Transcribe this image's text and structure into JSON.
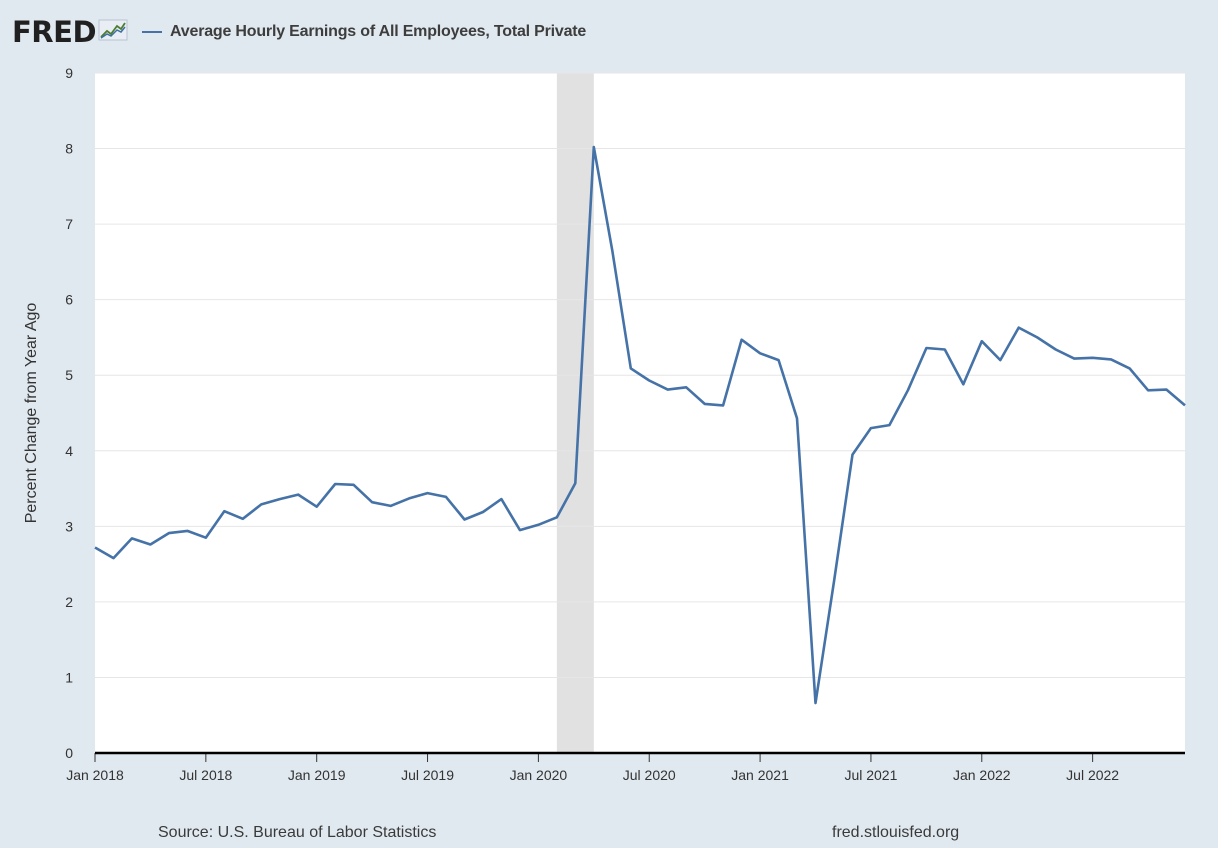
{
  "header": {
    "logo_text": "FRED",
    "logo_mark": "fred-chart-logo-icon"
  },
  "footer": {
    "source": "Source: U.S. Bureau of Labor Statistics",
    "site": "fred.stlouisfed.org"
  },
  "colors": {
    "series": "#4572a7",
    "recession": "#e1e1e1",
    "background": "#e1e9f0",
    "plot": "#ffffff"
  },
  "chart_data": {
    "type": "line",
    "title": "",
    "xlabel": "",
    "ylabel": "Percent Change from Year Ago",
    "ylim": [
      0,
      9
    ],
    "xlim": [
      "2018-01",
      "2022-12"
    ],
    "yticks": [
      "0",
      "1",
      "2",
      "3",
      "4",
      "5",
      "6",
      "7",
      "8",
      "9"
    ],
    "xticks": [
      {
        "label": "Jan 2018",
        "date": "2018-01"
      },
      {
        "label": "Jul 2018",
        "date": "2018-07"
      },
      {
        "label": "Jan 2019",
        "date": "2019-01"
      },
      {
        "label": "Jul 2019",
        "date": "2019-07"
      },
      {
        "label": "Jan 2020",
        "date": "2020-01"
      },
      {
        "label": "Jul 2020",
        "date": "2020-07"
      },
      {
        "label": "Jan 2021",
        "date": "2021-01"
      },
      {
        "label": "Jul 2021",
        "date": "2021-07"
      },
      {
        "label": "Jan 2022",
        "date": "2022-01"
      },
      {
        "label": "Jul 2022",
        "date": "2022-07"
      }
    ],
    "grid": true,
    "legend": "top-left",
    "recession_shading": [
      {
        "start": "2020-02",
        "end": "2020-04"
      }
    ],
    "series": [
      {
        "name": "Average Hourly Earnings of All Employees, Total Private",
        "x": [
          "2018-01",
          "2018-02",
          "2018-03",
          "2018-04",
          "2018-05",
          "2018-06",
          "2018-07",
          "2018-08",
          "2018-09",
          "2018-10",
          "2018-11",
          "2018-12",
          "2019-01",
          "2019-02",
          "2019-03",
          "2019-04",
          "2019-05",
          "2019-06",
          "2019-07",
          "2019-08",
          "2019-09",
          "2019-10",
          "2019-11",
          "2019-12",
          "2020-01",
          "2020-02",
          "2020-03",
          "2020-04",
          "2020-05",
          "2020-06",
          "2020-07",
          "2020-08",
          "2020-09",
          "2020-10",
          "2020-11",
          "2020-12",
          "2021-01",
          "2021-02",
          "2021-03",
          "2021-04",
          "2021-05",
          "2021-06",
          "2021-07",
          "2021-08",
          "2021-09",
          "2021-10",
          "2021-11",
          "2021-12",
          "2022-01",
          "2022-02",
          "2022-03",
          "2022-04",
          "2022-05",
          "2022-06",
          "2022-07",
          "2022-08",
          "2022-09",
          "2022-10",
          "2022-11",
          "2022-12"
        ],
        "values": [
          2.72,
          2.58,
          2.84,
          2.76,
          2.91,
          2.94,
          2.85,
          3.2,
          3.1,
          3.29,
          3.36,
          3.42,
          3.26,
          3.56,
          3.55,
          3.32,
          3.27,
          3.37,
          3.44,
          3.39,
          3.09,
          3.19,
          3.36,
          2.95,
          3.02,
          3.12,
          3.57,
          8.02,
          6.65,
          5.09,
          4.93,
          4.81,
          4.84,
          4.62,
          4.6,
          5.47,
          5.29,
          5.2,
          4.43,
          0.66,
          2.27,
          3.95,
          4.3,
          4.34,
          4.8,
          5.36,
          5.34,
          4.88,
          5.45,
          5.2,
          5.63,
          5.5,
          5.34,
          5.22,
          5.23,
          5.21,
          5.09,
          4.8,
          4.81,
          4.6
        ]
      }
    ]
  }
}
